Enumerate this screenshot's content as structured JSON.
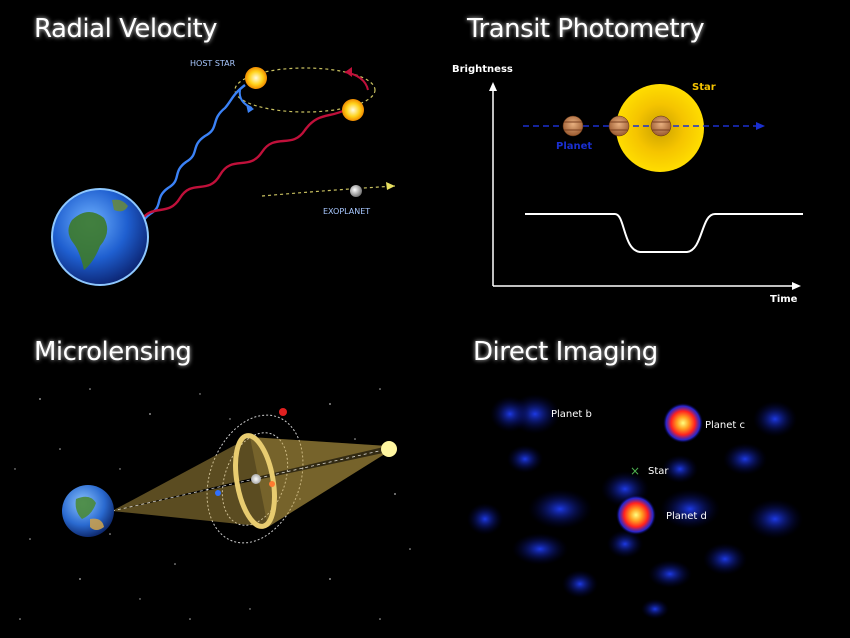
{
  "panels": {
    "radial_velocity": {
      "title": "Radial Velocity",
      "host_star_label": "HOST STAR",
      "exoplanet_label": "EXOPLANET"
    },
    "transit_photometry": {
      "title": "Transit Photometry",
      "y_axis_label": "Brightness",
      "x_axis_label": "Time",
      "star_label": "Star",
      "planet_label": "Planet"
    },
    "microlensing": {
      "title": "Microlensing"
    },
    "direct_imaging": {
      "title": "Direct Imaging",
      "planet_b_label": "Planet  b",
      "planet_c_label": "Planet  c",
      "planet_d_label": "Planet  d",
      "star_label": "Star"
    }
  },
  "colors": {
    "background": "#000000",
    "star_yellow": "#f5c400",
    "transit_line_blue": "#1a2fd0",
    "planet_label_blue": "#1a2fd0",
    "lens_gold": "#c9a94a",
    "wave_blue": "#3b82f6",
    "wave_red": "#c0103a"
  }
}
